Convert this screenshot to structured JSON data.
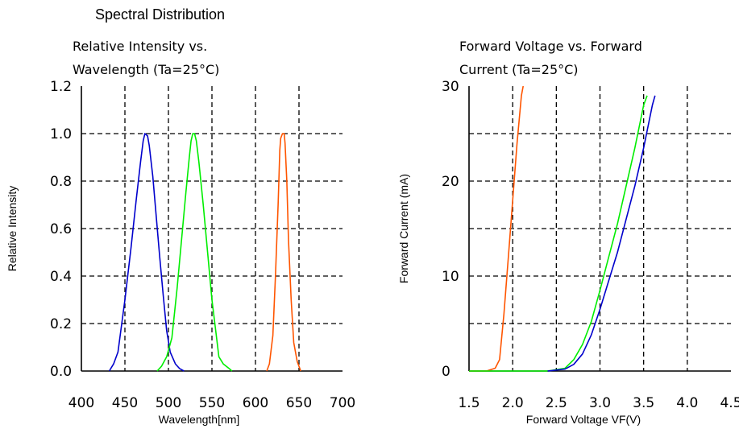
{
  "page_title": "Spectral Distribution",
  "chart_data": [
    {
      "type": "line",
      "title_line1": "Relative Intensity vs.",
      "title_line2": "Wavelength (Ta=25°C)",
      "xlabel": "Wavelength[nm]",
      "ylabel": "Relative Intensity",
      "xlim": [
        400,
        700
      ],
      "ylim": [
        0,
        1.2
      ],
      "xticks": [
        400,
        450,
        500,
        550,
        600,
        650,
        700
      ],
      "xtick_labels": [
        "400",
        "450",
        "500",
        "550",
        "600",
        "650",
        "700"
      ],
      "yticks": [
        0,
        0.2,
        0.4,
        0.6,
        0.8,
        1.0,
        1.2
      ],
      "ytick_labels": [
        "0.0",
        "0.2",
        "0.4",
        "0.6",
        "0.8",
        "1.0",
        "1.2"
      ],
      "grid": "dashed",
      "series": [
        {
          "color": "#0000cc",
          "points": [
            [
              432,
              0
            ],
            [
              437,
              0.03
            ],
            [
              442,
              0.08
            ],
            [
              450,
              0.3
            ],
            [
              457,
              0.52
            ],
            [
              463,
              0.72
            ],
            [
              468,
              0.88
            ],
            [
              471,
              0.97
            ],
            [
              473,
              1.0
            ],
            [
              476,
              0.99
            ],
            [
              478,
              0.95
            ],
            [
              482,
              0.82
            ],
            [
              486,
              0.65
            ],
            [
              490,
              0.48
            ],
            [
              494,
              0.32
            ],
            [
              498,
              0.17
            ],
            [
              502,
              0.08
            ],
            [
              508,
              0.03
            ],
            [
              513,
              0.01
            ],
            [
              518,
              0
            ]
          ]
        },
        {
          "color": "#00ee00",
          "points": [
            [
              487,
              0
            ],
            [
              492,
              0.02
            ],
            [
              498,
              0.06
            ],
            [
              504,
              0.14
            ],
            [
              510,
              0.35
            ],
            [
              515,
              0.55
            ],
            [
              520,
              0.75
            ],
            [
              524,
              0.9
            ],
            [
              526,
              0.97
            ],
            [
              528,
              1.0
            ],
            [
              530,
              1.0
            ],
            [
              532,
              0.97
            ],
            [
              535,
              0.88
            ],
            [
              540,
              0.7
            ],
            [
              545,
              0.5
            ],
            [
              550,
              0.3
            ],
            [
              555,
              0.15
            ],
            [
              558,
              0.06
            ],
            [
              563,
              0.03
            ],
            [
              570,
              0.01
            ],
            [
              573,
              0
            ]
          ]
        },
        {
          "color": "#ff5500",
          "points": [
            [
              613,
              0
            ],
            [
              616,
              0.03
            ],
            [
              620,
              0.15
            ],
            [
              623,
              0.4
            ],
            [
              626,
              0.7
            ],
            [
              628,
              0.93
            ],
            [
              629,
              0.98
            ],
            [
              631,
              1.0
            ],
            [
              633,
              1.0
            ],
            [
              634,
              0.96
            ],
            [
              636,
              0.8
            ],
            [
              638,
              0.55
            ],
            [
              641,
              0.3
            ],
            [
              644,
              0.12
            ],
            [
              648,
              0.04
            ],
            [
              652,
              0
            ]
          ]
        }
      ]
    },
    {
      "type": "line",
      "title_line1": "Forward Voltage vs. Forward",
      "title_line2": "Current (Ta=25°C)",
      "xlabel": "Forward Voltage  VF(V)",
      "ylabel": "Forward Current (mA)",
      "xlim": [
        1.5,
        4.5
      ],
      "ylim": [
        0,
        30
      ],
      "xticks": [
        1.5,
        2.0,
        2.5,
        3.0,
        3.5,
        4.0,
        4.5
      ],
      "xtick_labels": [
        "1.5",
        "2.0",
        "2.5",
        "3.0",
        "3.5",
        "4.0",
        "4.5"
      ],
      "yticks": [
        0,
        10,
        20,
        30
      ],
      "ytick_labels": [
        "0",
        "10",
        "20",
        "30"
      ],
      "grid": "dashed",
      "series": [
        {
          "color": "#ff5500",
          "points": [
            [
              1.5,
              0
            ],
            [
              1.7,
              0
            ],
            [
              1.8,
              0.3
            ],
            [
              1.85,
              1.2
            ],
            [
              1.9,
              6
            ],
            [
              1.95,
              12
            ],
            [
              2.0,
              18
            ],
            [
              2.05,
              24
            ],
            [
              2.1,
              29
            ],
            [
              2.12,
              30
            ]
          ]
        },
        {
          "color": "#00ee00",
          "points": [
            [
              1.5,
              0
            ],
            [
              2.4,
              0
            ],
            [
              2.6,
              0.3
            ],
            [
              2.7,
              1.2
            ],
            [
              2.8,
              2.8
            ],
            [
              2.9,
              5.2
            ],
            [
              3.0,
              8.5
            ],
            [
              3.1,
              12
            ],
            [
              3.2,
              15.5
            ],
            [
              3.3,
              19.5
            ],
            [
              3.4,
              23.5
            ],
            [
              3.5,
              28
            ],
            [
              3.54,
              29
            ]
          ]
        },
        {
          "color": "#0000cc",
          "points": [
            [
              2.4,
              0
            ],
            [
              2.6,
              0.2
            ],
            [
              2.7,
              0.7
            ],
            [
              2.8,
              1.8
            ],
            [
              2.9,
              3.8
            ],
            [
              3.0,
              6.5
            ],
            [
              3.1,
              9.5
            ],
            [
              3.2,
              12.5
            ],
            [
              3.3,
              16
            ],
            [
              3.4,
              19.5
            ],
            [
              3.5,
              23.5
            ],
            [
              3.6,
              28
            ],
            [
              3.63,
              29
            ]
          ]
        }
      ]
    }
  ]
}
